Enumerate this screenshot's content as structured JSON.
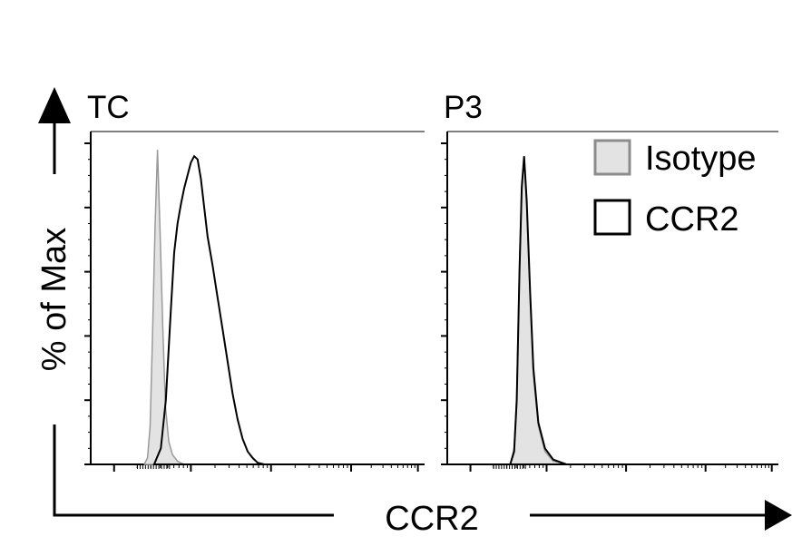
{
  "chart_data": {
    "type": "histogram",
    "xlabel": "CCR2",
    "ylabel": "% of Max",
    "legend": {
      "placement": "top-right",
      "entries": [
        {
          "name": "Isotype",
          "style": "filled",
          "fill": "#e3e3e3",
          "stroke": "#8c8c8c"
        },
        {
          "name": "CCR2",
          "style": "outline",
          "fill": "none",
          "stroke": "#000000"
        }
      ]
    },
    "x_range": [
      0,
      100
    ],
    "y_range": [
      0,
      100
    ],
    "panels": [
      {
        "title": "TC",
        "series": [
          {
            "name": "Isotype",
            "x": [
              16,
              17,
              17.8,
              18.5,
              19.3,
              20,
              20.8,
              21.6,
              22.4,
              23.4,
              24.5,
              26,
              28
            ],
            "y": [
              0,
              2,
              12,
              40,
              75,
              98,
              72,
              42,
              18,
              7,
              3,
              1,
              0
            ]
          },
          {
            "name": "CCR2",
            "x": [
              19,
              21,
              22.5,
              24,
              25,
              26,
              27,
              28,
              29,
              30,
              31,
              32,
              33,
              34,
              35,
              36.5,
              38,
              39.5,
              41,
              42.5,
              44,
              45.5,
              47,
              48.5,
              50,
              52
            ],
            "y": [
              0,
              5,
              20,
              48,
              66,
              75,
              81,
              86,
              90,
              94,
              96,
              95,
              89,
              80,
              71,
              62,
              52,
              42,
              32,
              22,
              14,
              8,
              4,
              2,
              0.5,
              0
            ]
          }
        ]
      },
      {
        "title": "P3",
        "series": [
          {
            "name": "Isotype",
            "x": [
              19,
              20.2,
              21,
              21.8,
              22.5,
              23.2,
              24,
              25,
              26,
              27.5,
              29.5,
              32,
              36
            ],
            "y": [
              0,
              5,
              22,
              62,
              88,
              95,
              80,
              52,
              28,
              12,
              4,
              1,
              0
            ]
          },
          {
            "name": "CCR2",
            "x": [
              19,
              20.2,
              21,
              21.8,
              22.5,
              23.2,
              24,
              25,
              26,
              27.5,
              29.5,
              32,
              36
            ],
            "y": [
              0,
              4,
              20,
              60,
              86,
              96,
              82,
              54,
              30,
              13,
              5,
              1.5,
              0
            ]
          }
        ]
      }
    ]
  }
}
